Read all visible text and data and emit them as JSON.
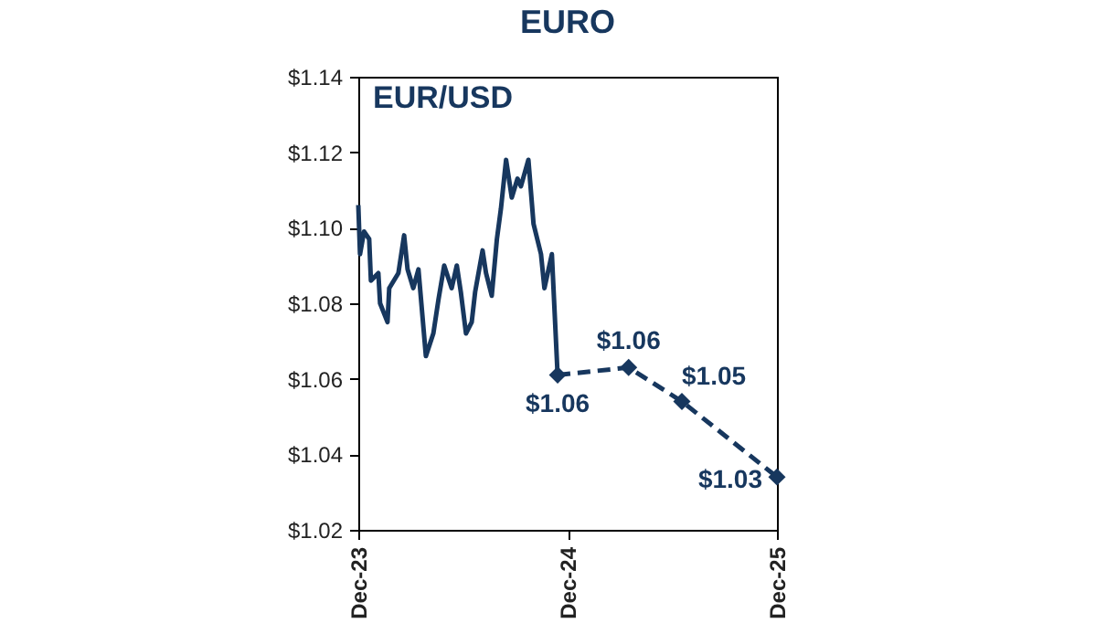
{
  "chart_data": {
    "type": "line",
    "title": "EURO",
    "annotations": [
      "EUR/USD"
    ],
    "xlim": [
      "2023-12-01",
      "2025-12-01"
    ],
    "xticks": [
      {
        "value": "2023-12-01",
        "label": "Dec-23"
      },
      {
        "value": "2024-12-01",
        "label": "Dec-24"
      },
      {
        "value": "2025-12-01",
        "label": "Dec-25"
      }
    ],
    "ylim": [
      1.02,
      1.14
    ],
    "yticks": [
      {
        "value": 1.02,
        "label": "$1.02"
      },
      {
        "value": 1.04,
        "label": "$1.04"
      },
      {
        "value": 1.06,
        "label": "$1.06"
      },
      {
        "value": 1.08,
        "label": "$1.08"
      },
      {
        "value": 1.1,
        "label": "$1.10"
      },
      {
        "value": 1.12,
        "label": "$1.12"
      },
      {
        "value": 1.14,
        "label": "$1.14"
      }
    ],
    "series": [
      {
        "color": "#17375e",
        "marker": "none",
        "line_style": "solid",
        "x": [
          "2023-12-01",
          "2023-12-04",
          "2023-12-11",
          "2023-12-20",
          "2023-12-23",
          "2024-01-05",
          "2024-01-08",
          "2024-01-21",
          "2024-01-24",
          "2024-02-09",
          "2024-02-19",
          "2024-02-25",
          "2024-03-06",
          "2024-03-15",
          "2024-03-28",
          "2024-04-10",
          "2024-04-19",
          "2024-04-29",
          "2024-05-12",
          "2024-05-21",
          "2024-05-28",
          "2024-06-06",
          "2024-06-16",
          "2024-06-22",
          "2024-07-05",
          "2024-07-11",
          "2024-07-21",
          "2024-07-30",
          "2024-08-06",
          "2024-08-15",
          "2024-08-25",
          "2024-09-04",
          "2024-09-10",
          "2024-09-23",
          "2024-10-02",
          "2024-10-15",
          "2024-10-21",
          "2024-11-03",
          "2024-11-13"
        ],
        "values": [
          1.106,
          1.093,
          1.099,
          1.097,
          1.086,
          1.088,
          1.08,
          1.075,
          1.084,
          1.088,
          1.098,
          1.089,
          1.084,
          1.089,
          1.066,
          1.072,
          1.081,
          1.09,
          1.084,
          1.09,
          1.083,
          1.072,
          1.075,
          1.083,
          1.094,
          1.088,
          1.082,
          1.097,
          1.105,
          1.118,
          1.108,
          1.113,
          1.111,
          1.118,
          1.101,
          1.093,
          1.084,
          1.093,
          1.061
        ]
      },
      {
        "color": "#17375e",
        "marker": "diamond",
        "line_style": "dashed",
        "x": [
          "2024-11-13",
          "2025-03-17",
          "2025-06-18",
          "2025-12-01"
        ],
        "values": [
          1.061,
          1.063,
          1.054,
          1.034
        ],
        "value_labels": [
          "$1.06",
          "$1.06",
          "$1.05",
          "$1.03"
        ]
      }
    ]
  }
}
